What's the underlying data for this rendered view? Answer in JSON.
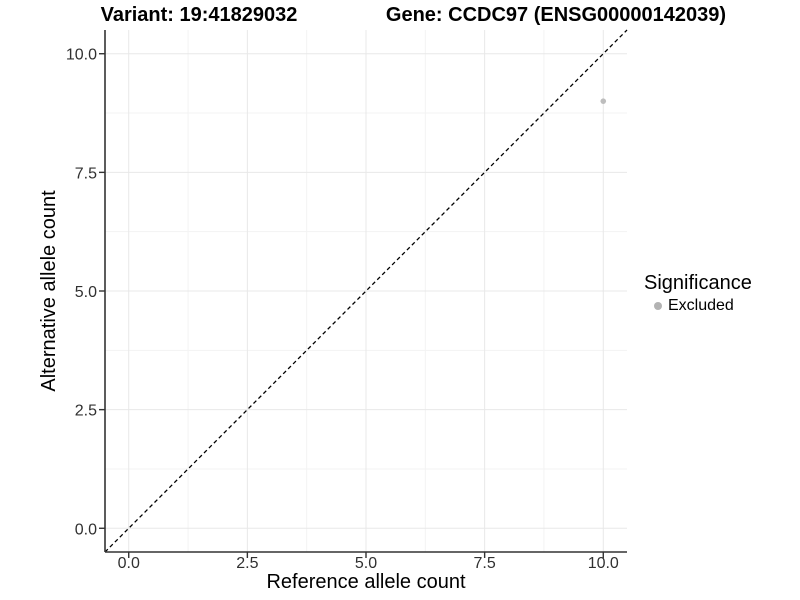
{
  "titles": {
    "left": "Variant: 19:41829032",
    "right": "Gene: CCDC97 (ENSG00000142039)"
  },
  "chart_data": {
    "type": "scatter",
    "xlabel": "Reference allele count",
    "ylabel": "Alternative allele count",
    "xlim": [
      -0.5,
      10.5
    ],
    "ylim": [
      -0.5,
      10.5
    ],
    "x_ticks": [
      0,
      2.5,
      5,
      7.5,
      10
    ],
    "x_tick_labels": [
      "0.0",
      "2.5",
      "5.0",
      "7.5",
      "10.0"
    ],
    "y_ticks": [
      0,
      2.5,
      5,
      7.5,
      10
    ],
    "y_tick_labels": [
      "0.0",
      "2.5",
      "5.0",
      "7.5",
      "10.0"
    ],
    "x_minor_ticks": [
      1.25,
      3.75,
      6.25,
      8.75
    ],
    "y_minor_ticks": [
      1.25,
      3.75,
      6.25,
      8.75
    ],
    "grid": "major+minor",
    "series": [
      {
        "name": "Excluded",
        "color": "#bdbdbd",
        "marker": "circle",
        "points": [
          {
            "x": 10,
            "y": 9
          }
        ]
      }
    ],
    "reference_line": {
      "type": "identity",
      "equation": "y = x",
      "style": "dashed",
      "color": "#000000"
    },
    "legend": {
      "title": "Significance",
      "position": "right",
      "entries": [
        {
          "label": "Excluded",
          "color": "#b3b3b3",
          "marker": "circle"
        }
      ]
    }
  },
  "colors": {
    "background": "#ffffff",
    "grid_major": "#e8e8e8",
    "grid_minor": "#f3f3f3",
    "axis_line": "#333333",
    "tick_text": "#303030",
    "title_text": "#000000"
  }
}
